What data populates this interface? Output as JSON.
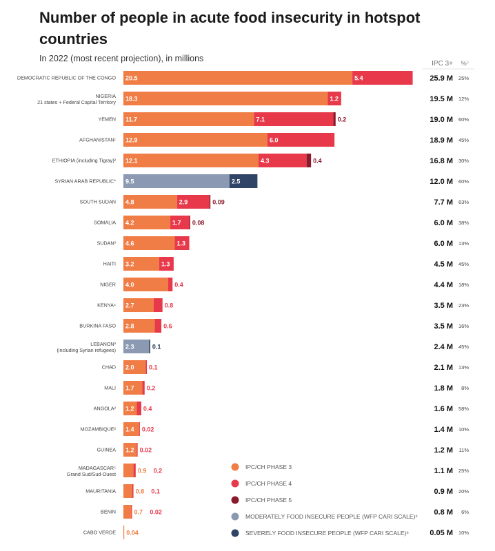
{
  "title": "Number of people in acute food insecurity in hotspot countries",
  "subtitle": "In 2022 (most recent projection), in millions",
  "chart_data": {
    "type": "bar",
    "orientation": "horizontal",
    "stacked": true,
    "title": "Number of people in acute food insecurity in hotspot countries",
    "subtitle": "In 2022 (most recent projection), in millions",
    "total_column_header": "IPC 3+",
    "percent_column_header": "%⁷",
    "colors": {
      "phase3": "#f07d45",
      "phase4": "#e8394a",
      "phase5": "#8b1a2c",
      "moderate": "#8b99b2",
      "severe": "#2f4466"
    },
    "legend": {
      "placement": "bottom-right",
      "items": [
        {
          "key": "phase3",
          "label": "IPC/CH PHASE 3"
        },
        {
          "key": "phase4",
          "label": "IPC/CH PHASE 4"
        },
        {
          "key": "phase5",
          "label": "IPC/CH PHASE 5"
        },
        {
          "key": "moderate",
          "label": "MODERATELY FOOD INSECURE PEOPLE (WFP CARI SCALE)⁶"
        },
        {
          "key": "severe",
          "label": "SEVERELY FOOD INSECURE PEOPLE (WFP CARI SCALE)⁶"
        }
      ]
    },
    "rows": [
      {
        "country": "DEMOCRATIC REPUBLIC OF THE CONGO",
        "sub": "",
        "segments": [
          {
            "key": "phase3",
            "value": 20.5,
            "label": "20.5"
          },
          {
            "key": "phase4",
            "value": 5.4,
            "label": "5.4"
          }
        ],
        "total": "25.9 M",
        "percent": "25%"
      },
      {
        "country": "NIGERIA",
        "sub": "21 states + Federal Capital Territory",
        "segments": [
          {
            "key": "phase3",
            "value": 18.3,
            "label": "18.3"
          },
          {
            "key": "phase4",
            "value": 1.2,
            "label": "1.2"
          }
        ],
        "total": "19.5 M",
        "percent": "12%"
      },
      {
        "country": "YEMEN",
        "sub": "",
        "segments": [
          {
            "key": "phase3",
            "value": 11.7,
            "label": "11.7"
          },
          {
            "key": "phase4",
            "value": 7.1,
            "label": "7.1"
          },
          {
            "key": "phase5",
            "value": 0.2,
            "label": "0.2"
          }
        ],
        "total": "19.0 M",
        "percent": "60%"
      },
      {
        "country": "AFGHANISTAN¹",
        "sub": "",
        "segments": [
          {
            "key": "phase3",
            "value": 12.9,
            "label": "12.9"
          },
          {
            "key": "phase4",
            "value": 6.0,
            "label": "6.0"
          }
        ],
        "total": "18.9 M",
        "percent": "45%"
      },
      {
        "country": "ETHIOPIA (including Tigray)²",
        "sub": "",
        "segments": [
          {
            "key": "phase3",
            "value": 12.1,
            "label": "12.1"
          },
          {
            "key": "phase4",
            "value": 4.3,
            "label": "4.3"
          },
          {
            "key": "phase5",
            "value": 0.4,
            "label": "0.4"
          }
        ],
        "total": "16.8 M",
        "percent": "30%"
      },
      {
        "country": "SYRIAN ARAB REPUBLIC*",
        "sub": "",
        "segments": [
          {
            "key": "moderate",
            "value": 9.5,
            "label": "9.5"
          },
          {
            "key": "severe",
            "value": 2.5,
            "label": "2.5"
          }
        ],
        "total": "12.0 M",
        "percent": "60%"
      },
      {
        "country": "SOUTH SUDAN",
        "sub": "",
        "segments": [
          {
            "key": "phase3",
            "value": 4.8,
            "label": "4.8"
          },
          {
            "key": "phase4",
            "value": 2.9,
            "label": "2.9"
          },
          {
            "key": "phase5",
            "value": 0.09,
            "label": "0.09"
          }
        ],
        "total": "7.7 M",
        "percent": "63%"
      },
      {
        "country": "SOMALIA",
        "sub": "",
        "segments": [
          {
            "key": "phase3",
            "value": 4.2,
            "label": "4.2"
          },
          {
            "key": "phase4",
            "value": 1.7,
            "label": "1.7"
          },
          {
            "key": "phase5",
            "value": 0.08,
            "label": "0.08"
          }
        ],
        "total": "6.0 M",
        "percent": "38%"
      },
      {
        "country": "SUDAN³",
        "sub": "",
        "segments": [
          {
            "key": "phase3",
            "value": 4.6,
            "label": "4.6"
          },
          {
            "key": "phase4",
            "value": 1.3,
            "label": "1.3"
          }
        ],
        "total": "6.0 M",
        "percent": "13%"
      },
      {
        "country": "HAITI",
        "sub": "",
        "segments": [
          {
            "key": "phase3",
            "value": 3.2,
            "label": "3.2"
          },
          {
            "key": "phase4",
            "value": 1.3,
            "label": "1.3"
          }
        ],
        "total": "4.5 M",
        "percent": "45%"
      },
      {
        "country": "NIGER",
        "sub": "",
        "segments": [
          {
            "key": "phase3",
            "value": 4.0,
            "label": "4.0"
          },
          {
            "key": "phase4",
            "value": 0.4,
            "label": "0.4"
          }
        ],
        "total": "4.4 M",
        "percent": "18%"
      },
      {
        "country": "KENYA⁴",
        "sub": "",
        "segments": [
          {
            "key": "phase3",
            "value": 2.7,
            "label": "2.7"
          },
          {
            "key": "phase4",
            "value": 0.8,
            "label": "0.8"
          }
        ],
        "total": "3.5 M",
        "percent": "23%"
      },
      {
        "country": "BURKINA FASO",
        "sub": "",
        "segments": [
          {
            "key": "phase3",
            "value": 2.8,
            "label": "2.8"
          },
          {
            "key": "phase4",
            "value": 0.6,
            "label": "0.6"
          }
        ],
        "total": "3.5 M",
        "percent": "16%"
      },
      {
        "country": "LEBANON³",
        "sub": "(including Syrian refugees)",
        "segments": [
          {
            "key": "moderate",
            "value": 2.3,
            "label": "2.3"
          },
          {
            "key": "severe",
            "value": 0.1,
            "label": "0.1"
          }
        ],
        "total": "2.4 M",
        "percent": "45%"
      },
      {
        "country": "CHAD",
        "sub": "",
        "segments": [
          {
            "key": "phase3",
            "value": 2.0,
            "label": "2.0"
          },
          {
            "key": "phase4",
            "value": 0.1,
            "label": "0.1"
          }
        ],
        "total": "2.1 M",
        "percent": "13%"
      },
      {
        "country": "MALI",
        "sub": "",
        "segments": [
          {
            "key": "phase3",
            "value": 1.7,
            "label": "1.7"
          },
          {
            "key": "phase4",
            "value": 0.2,
            "label": "0.2"
          }
        ],
        "total": "1.8 M",
        "percent": "8%"
      },
      {
        "country": "ANGOLA²",
        "sub": "",
        "segments": [
          {
            "key": "phase3",
            "value": 1.2,
            "label": "1.2"
          },
          {
            "key": "phase4",
            "value": 0.4,
            "label": "0.4"
          }
        ],
        "total": "1.6 M",
        "percent": "58%"
      },
      {
        "country": "MOZAMBIQUE²",
        "sub": "",
        "segments": [
          {
            "key": "phase3",
            "value": 1.4,
            "label": "1.4"
          },
          {
            "key": "phase4",
            "value": 0.02,
            "label": "0.02"
          }
        ],
        "total": "1.4 M",
        "percent": "10%"
      },
      {
        "country": "GUINEA",
        "sub": "",
        "segments": [
          {
            "key": "phase3",
            "value": 1.2,
            "label": "1.2"
          },
          {
            "key": "phase4",
            "value": 0.02,
            "label": "0.02"
          }
        ],
        "total": "1.2 M",
        "percent": "11%"
      },
      {
        "country": "MADAGASCAR⁵",
        "sub": "Grand Sud/Sud-Ouest",
        "segments": [
          {
            "key": "phase3",
            "value": 0.9,
            "label": "0.9"
          },
          {
            "key": "phase4",
            "value": 0.2,
            "label": "0.2"
          }
        ],
        "total": "1.1 M",
        "percent": "25%"
      },
      {
        "country": "MAURITANIA",
        "sub": "",
        "segments": [
          {
            "key": "phase3",
            "value": 0.8,
            "label": "0.8"
          },
          {
            "key": "phase4",
            "value": 0.1,
            "label": "0.1"
          }
        ],
        "total": "0.9 M",
        "percent": "20%"
      },
      {
        "country": "BENIN",
        "sub": "",
        "segments": [
          {
            "key": "phase3",
            "value": 0.7,
            "label": "0.7"
          },
          {
            "key": "phase4",
            "value": 0.02,
            "label": "0.02"
          }
        ],
        "total": "0.8 M",
        "percent": "6%"
      },
      {
        "country": "CABO VERDE",
        "sub": "",
        "segments": [
          {
            "key": "phase3",
            "value": 0.04,
            "label": "0.04"
          }
        ],
        "total": "0.05 M",
        "percent": "10%"
      }
    ]
  }
}
